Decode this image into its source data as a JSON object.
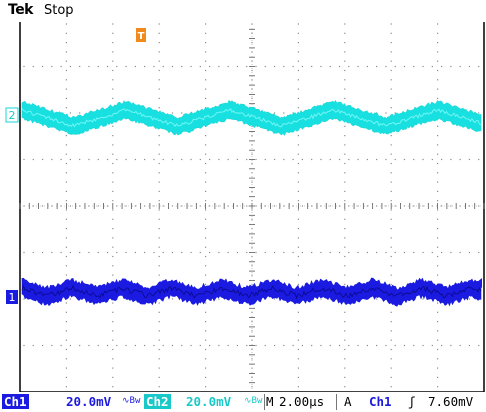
{
  "header": {
    "brand": "Tek",
    "acq_state": "Stop"
  },
  "channels": [
    {
      "id": "1",
      "marker_label": "1",
      "scale": "20.0mV",
      "color": "#1a1ae0"
    },
    {
      "id": "2",
      "marker_label": "2",
      "scale": "20.0mV",
      "color": "#19d6d6"
    }
  ],
  "trigger_marker": "T",
  "footer": {
    "ch1_label": "Ch1",
    "ch1_scale": "20.0mV",
    "ch1_bw": "∿Bw",
    "ch2_label": "Ch2",
    "ch2_scale": "20.0mV",
    "ch2_bw": "∿Bw",
    "timebase_label": "M",
    "timebase": "2.00µs",
    "trigger_mode": "A",
    "trigger_source": "Ch1",
    "trigger_slope": "ʃ",
    "trigger_level": "7.60mV"
  },
  "colors": {
    "ch1": "#1a1ae0",
    "ch2": "#19d6d6",
    "trigger": "#f08a1a",
    "grid": "#9a9a9a"
  }
}
